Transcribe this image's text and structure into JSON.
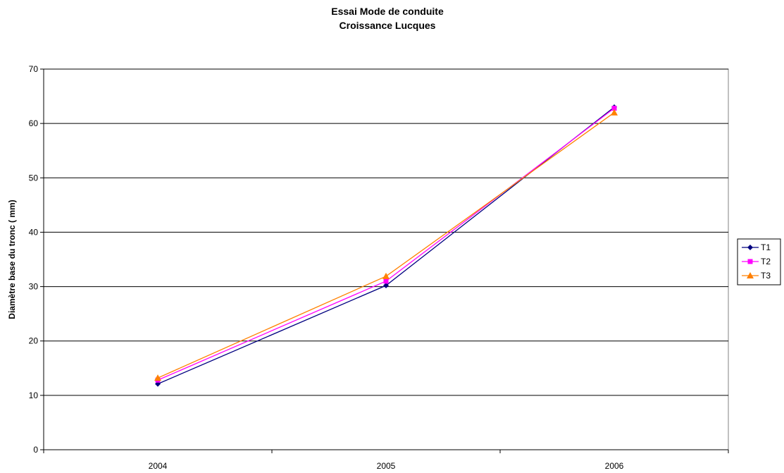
{
  "chart_data": {
    "type": "line",
    "title": "Essai Mode de conduite",
    "subtitle": "Croissance Lucques",
    "xlabel": "",
    "ylabel": "Diamètre base du tronc ( mm)",
    "categories": [
      "2004",
      "2005",
      "2006"
    ],
    "y_ticks": [
      0,
      10,
      20,
      30,
      40,
      50,
      60,
      70
    ],
    "ylim": [
      0,
      70
    ],
    "grid": "horizontal",
    "legend_position": "right",
    "series": [
      {
        "name": "T1",
        "values": [
          12.1,
          30.2,
          63.0
        ],
        "color": "#000080",
        "marker": "diamond"
      },
      {
        "name": "T2",
        "values": [
          12.8,
          31.0,
          62.8
        ],
        "color": "#ff00ff",
        "marker": "square"
      },
      {
        "name": "T3",
        "values": [
          13.2,
          31.9,
          62.0
        ],
        "color": "#ff8000",
        "marker": "triangle"
      }
    ]
  }
}
